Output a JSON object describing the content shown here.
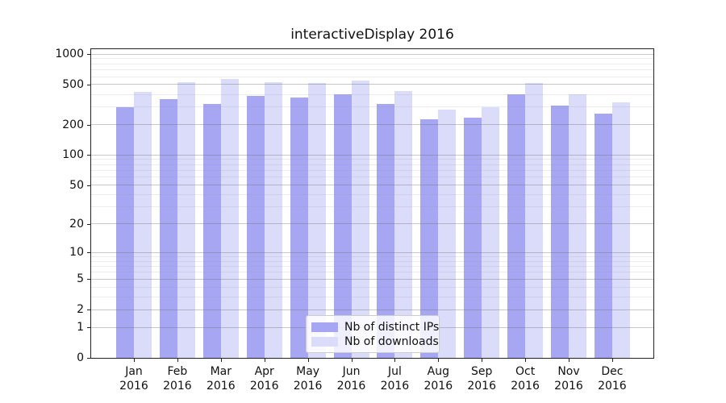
{
  "title": "interactiveDisplay 2016",
  "x_axis": {
    "months": [
      "Jan",
      "Feb",
      "Mar",
      "Apr",
      "May",
      "Jun",
      "Jul",
      "Aug",
      "Sep",
      "Oct",
      "Nov",
      "Dec"
    ],
    "year": "2016"
  },
  "y_axis": {
    "tick_labels": [
      "0",
      "1",
      "2",
      "5",
      "10",
      "20",
      "50",
      "100",
      "200",
      "500",
      "1000"
    ]
  },
  "legend": {
    "items": [
      "Nb of distinct IPs",
      "Nb of downloads"
    ]
  },
  "colors": {
    "distinct_ips": "#a6a6f2",
    "downloads": "#dbdbfa",
    "grid_major": "#9e9e9e",
    "grid_minor": "#dcdcdc",
    "spine": "#222222",
    "text": "#111111"
  },
  "chart_data": {
    "type": "bar",
    "title": "interactiveDisplay 2016",
    "categories": [
      "Jan 2016",
      "Feb 2016",
      "Mar 2016",
      "Apr 2016",
      "May 2016",
      "Jun 2016",
      "Jul 2016",
      "Aug 2016",
      "Sep 2016",
      "Oct 2016",
      "Nov 2016",
      "Dec 2016"
    ],
    "series": [
      {
        "name": "Nb of distinct IPs",
        "color": "#a6a6f2",
        "values": [
          300,
          360,
          324,
          388,
          370,
          403,
          323,
          228,
          235,
          403,
          310,
          258
        ]
      },
      {
        "name": "Nb of downloads",
        "color": "#dbdbfa",
        "values": [
          421,
          528,
          565,
          528,
          518,
          545,
          434,
          280,
          296,
          520,
          400,
          334
        ]
      }
    ],
    "xlabel": "",
    "ylabel": "",
    "yscale": "log1p",
    "yticks": [
      0,
      1,
      2,
      5,
      10,
      20,
      50,
      100,
      200,
      500,
      1000
    ],
    "ylim": [
      0,
      1120
    ],
    "grid": true,
    "grid_on_top": true,
    "legend_position": "lower center"
  }
}
